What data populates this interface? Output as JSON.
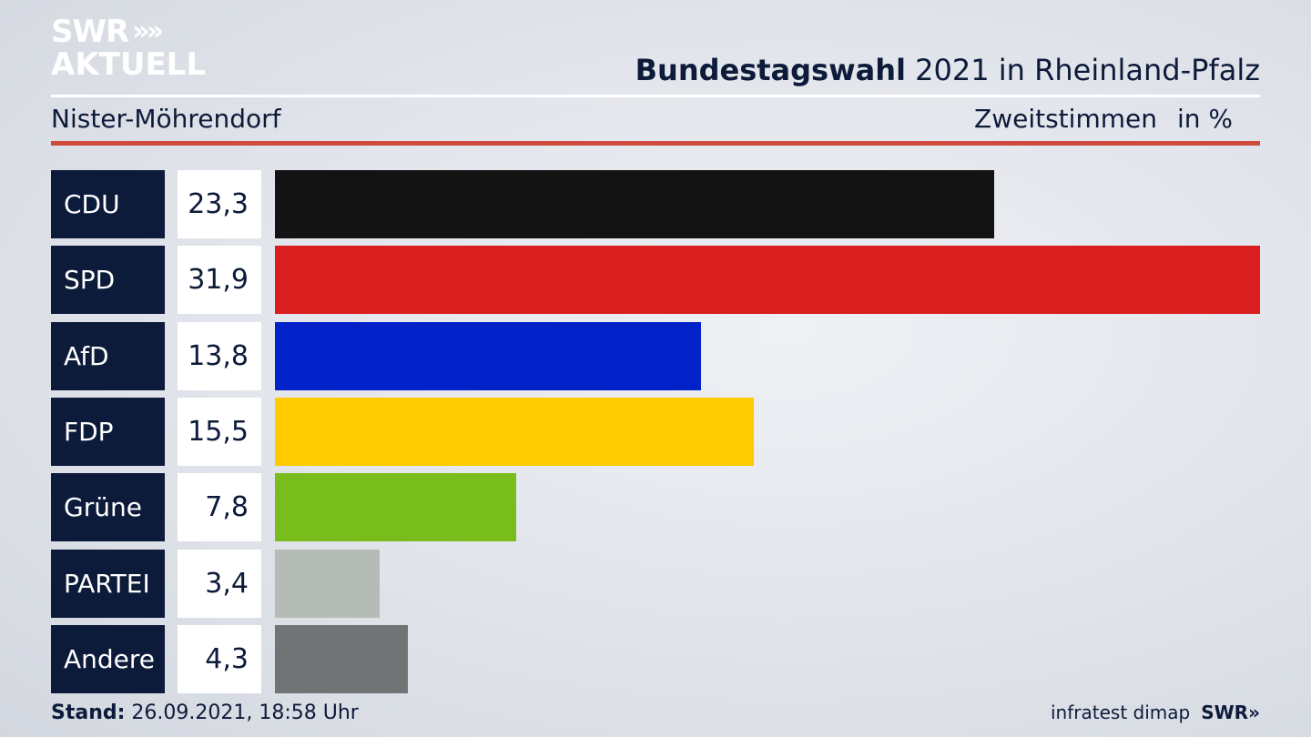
{
  "brand": {
    "line1": "SWR",
    "line2": "AKTUELL",
    "chevrons": "»"
  },
  "header": {
    "title_bold": "Bundestagswahl",
    "title_rest": "2021 in Rheinland-Pfalz",
    "region": "Nister-Möhrendorf",
    "measure": "Zweitstimmen",
    "unit": "in %"
  },
  "chart_data": {
    "type": "bar",
    "orientation": "horizontal",
    "categories": [
      "CDU",
      "SPD",
      "AfD",
      "FDP",
      "Grüne",
      "PARTEI",
      "Andere"
    ],
    "values": [
      23.3,
      31.9,
      13.8,
      15.5,
      7.8,
      3.4,
      4.3
    ],
    "value_labels": [
      "23,3",
      "31,9",
      "13,8",
      "15,5",
      "7,8",
      "3,4",
      "4,3"
    ],
    "colors": [
      "#131313",
      "#d81e1e",
      "#0022c8",
      "#fdcb00",
      "#78bd1c",
      "#b5bcb5",
      "#727375"
    ],
    "xlim": [
      0,
      31.9
    ],
    "grid": false,
    "legend": "none"
  },
  "footer": {
    "stand_label": "Stand:",
    "stand_value": "26.09.2021, 18:58 Uhr",
    "source": "infratest dimap",
    "brand": "SWR»"
  }
}
